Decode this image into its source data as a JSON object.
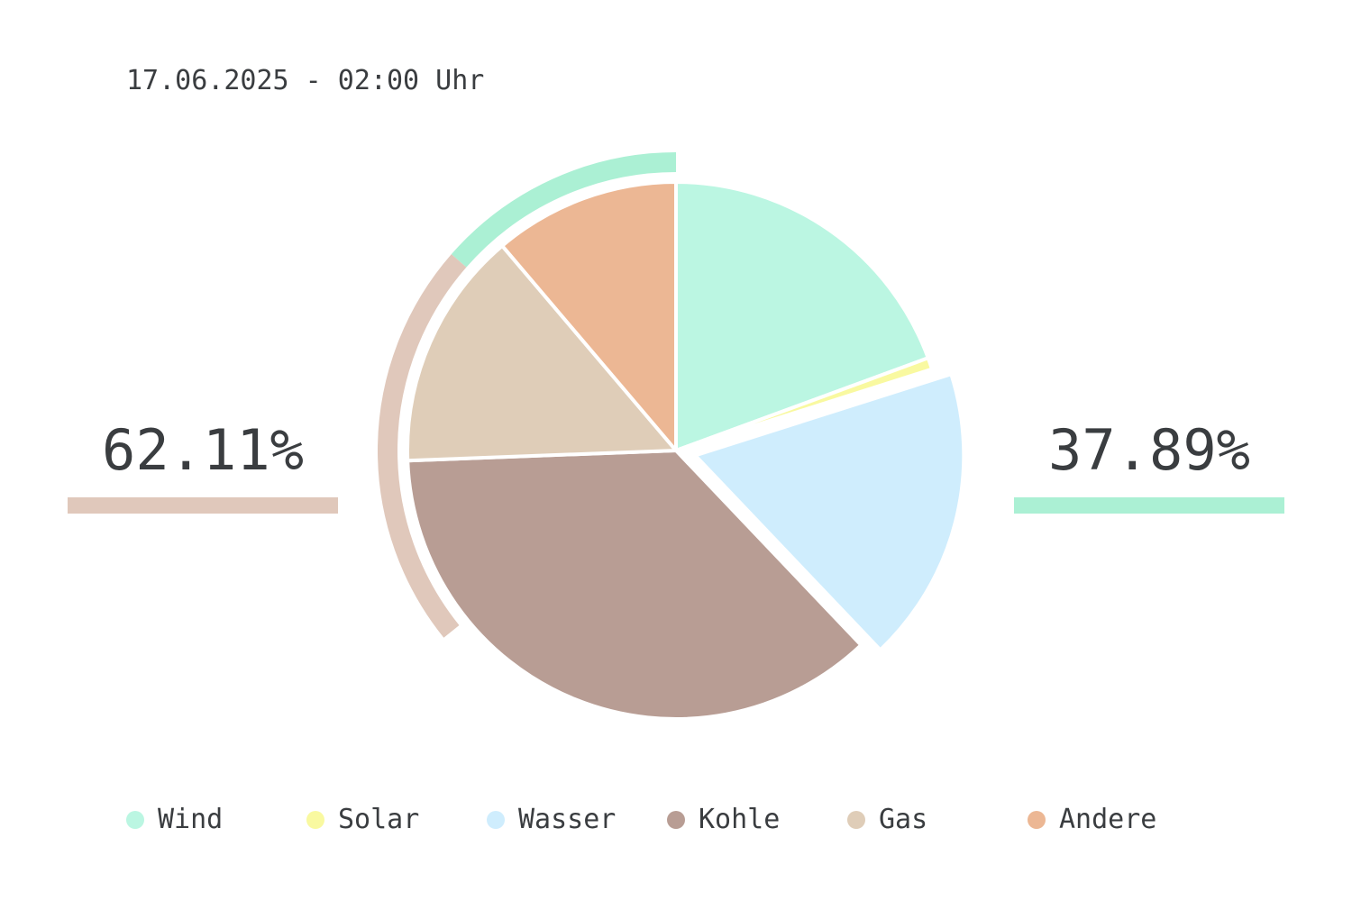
{
  "header": {
    "timestamp": "17.06.2025 - 02:00 Uhr"
  },
  "summary": {
    "fossil_share_label": "62.11%",
    "renewable_share_label": "37.89%",
    "fossil_share": 62.11,
    "renewable_share": 37.89,
    "fossil_color": "#e0c8bb",
    "renewable_color": "#abf0d4"
  },
  "chart_data": {
    "type": "pie",
    "title": "",
    "start_angle_deg": 0,
    "direction": "clockwise",
    "exploded_series": [
      "Wasser"
    ],
    "categories": [
      "Wind",
      "Solar",
      "Wasser",
      "Kohle",
      "Gas",
      "Andere"
    ],
    "values": [
      19.4,
      0.7,
      17.8,
      36.5,
      14.4,
      11.2
    ],
    "colors": [
      "#bbf6e2",
      "#f9f9a0",
      "#cfedfd",
      "#b89d94",
      "#dfcdb8",
      "#ecb794"
    ],
    "outer_ring": [
      {
        "name": "renewable",
        "value": 37.89,
        "color": "#abf0d4"
      },
      {
        "name": "fossil",
        "value": 62.11,
        "color": "#e0c8bb"
      }
    ]
  }
}
